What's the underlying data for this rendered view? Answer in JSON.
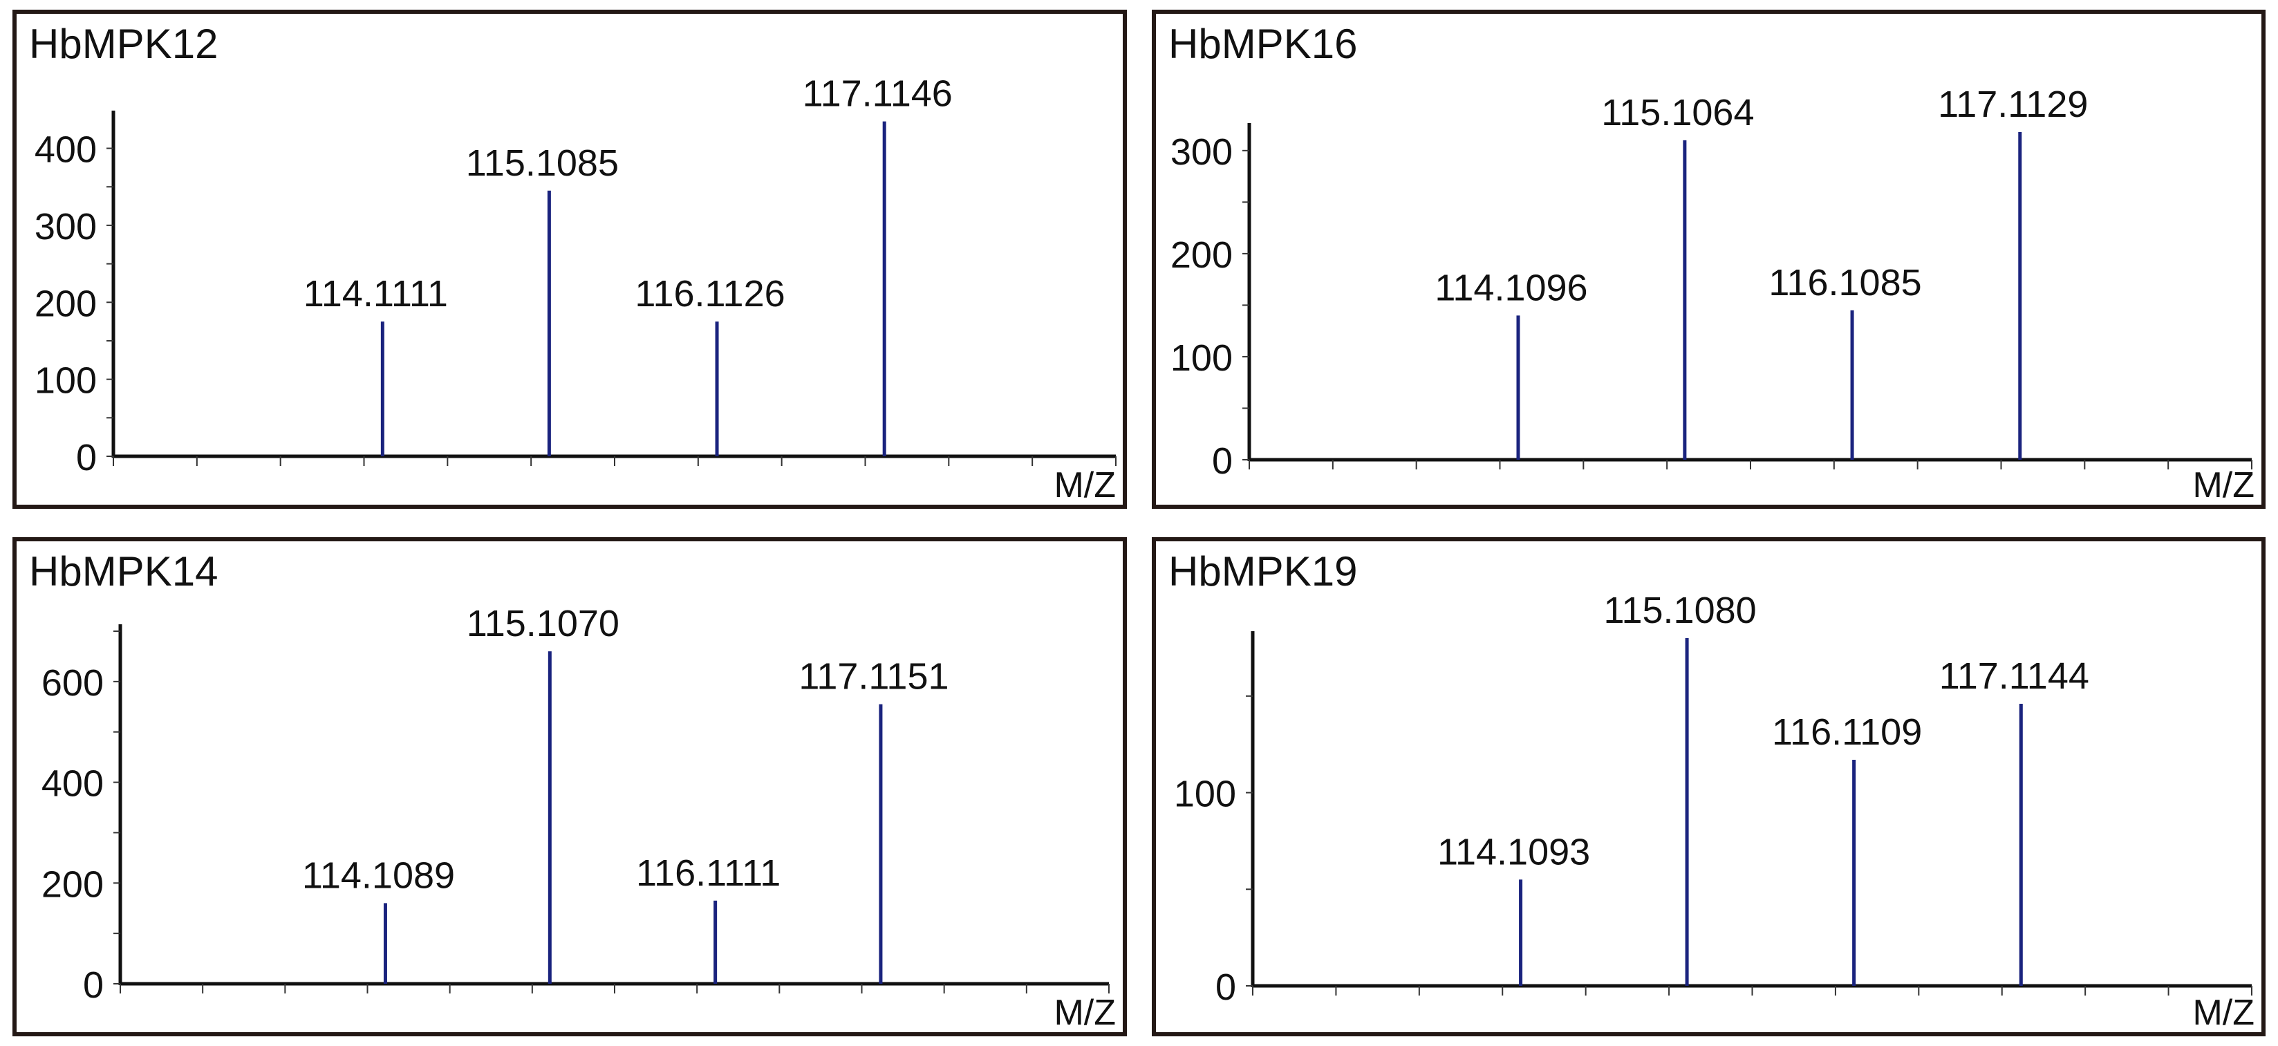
{
  "chart_data": [
    {
      "type": "bar",
      "title": "HbMPK12",
      "xlabel": "M/Z",
      "ylabel": "",
      "x": [
        114.1111,
        115.1085,
        116.1126,
        117.1146
      ],
      "labels": [
        "114.1111",
        "115.1085",
        "116.1126",
        "117.1146"
      ],
      "values": [
        175,
        345,
        175,
        435
      ],
      "yticks": [
        "0",
        "100",
        "200",
        "300",
        "400"
      ],
      "ytick_values": [
        0,
        100,
        200,
        300,
        400
      ],
      "ylim": [
        0,
        440
      ],
      "xlim": [
        112.5,
        118.5
      ],
      "color": "#1a237e",
      "grid": false,
      "legend": "none"
    },
    {
      "type": "bar",
      "title": "HbMPK16",
      "xlabel": "M/Z",
      "ylabel": "",
      "x": [
        114.1096,
        115.1064,
        116.1085,
        117.1129
      ],
      "labels": [
        "114.1096",
        "115.1064",
        "116.1085",
        "117.1129"
      ],
      "values": [
        140,
        310,
        145,
        318
      ],
      "yticks": [
        "0",
        "100",
        "200",
        "300"
      ],
      "ytick_values": [
        0,
        100,
        200,
        300
      ],
      "ylim": [
        0,
        320
      ],
      "xlim": [
        112.5,
        118.5
      ],
      "color": "#1a237e",
      "grid": false,
      "legend": "none"
    },
    {
      "type": "bar",
      "title": "HbMPK14",
      "xlabel": "M/Z",
      "ylabel": "",
      "x": [
        114.1089,
        115.107,
        116.1111,
        117.1151
      ],
      "labels": [
        "114.1089",
        "115.1070",
        "116.1111",
        "117.1151"
      ],
      "values": [
        160,
        660,
        165,
        555
      ],
      "yticks": [
        "0",
        "200",
        "400",
        "600"
      ],
      "ytick_values": [
        0,
        200,
        400,
        600
      ],
      "ylim": [
        0,
        700
      ],
      "xlim": [
        112.5,
        118.5
      ],
      "color": "#1a237e",
      "grid": false,
      "legend": "none"
    },
    {
      "type": "bar",
      "title": "HbMPK19",
      "xlabel": "M/Z",
      "ylabel": "",
      "x": [
        114.1093,
        115.108,
        116.1109,
        117.1144
      ],
      "labels": [
        "114.1093",
        "115.1080",
        "116.1109",
        "117.1144"
      ],
      "values": [
        55,
        180,
        117,
        146
      ],
      "yticks": [
        "0",
        "100"
      ],
      "ytick_values": [
        0,
        100
      ],
      "ylim": [
        0,
        180
      ],
      "xlim": [
        112.5,
        118.5
      ],
      "color": "#1a237e",
      "grid": false,
      "legend": "none"
    }
  ]
}
